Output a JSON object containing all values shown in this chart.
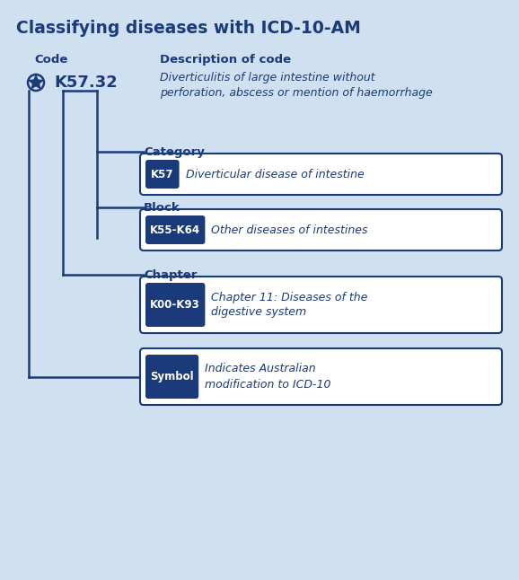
{
  "title": "Classifying diseases with ICD-10-AM",
  "title_color": "#003087",
  "bg_color": "#cfe0f0",
  "dark_blue": "#1a3a7a",
  "white": "#ffffff",
  "code_label": "Code",
  "desc_label": "Description of code",
  "code_value": "K57.32",
  "code_desc": "Diverticulitis of large intestine without\nperforation, abscess or mention of haemorrhage",
  "rows": [
    {
      "label": "Category",
      "badge": "K57",
      "text": "Diverticular disease of intestine"
    },
    {
      "label": "Block",
      "badge": "K55-K64",
      "text": "Other diseases of intestines"
    },
    {
      "label": "Chapter",
      "badge": "K00-K93",
      "text": "Chapter 11: Diseases of the\ndigestive system"
    },
    {
      "label": null,
      "badge": "Symbol",
      "text": "Indicates Australian\nmodification to ICD-10"
    }
  ],
  "line_color": "#1a3a7a",
  "line_width": 1.8
}
